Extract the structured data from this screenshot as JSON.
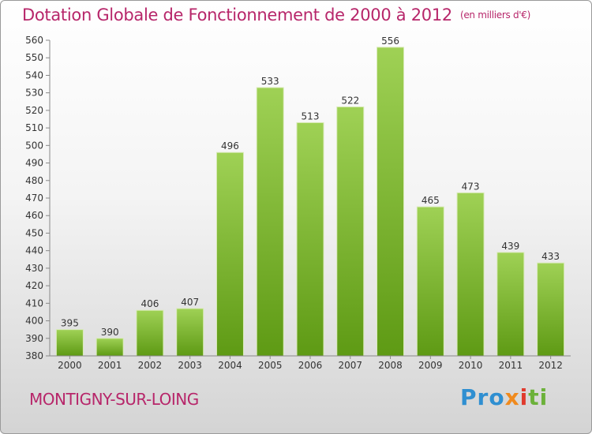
{
  "chart_data": {
    "type": "bar",
    "title": "Dotation Globale de Fonctionnement de 2000 à 2012",
    "unit_note": "(en milliers d'€)",
    "categories": [
      "2000",
      "2001",
      "2002",
      "2003",
      "2004",
      "2005",
      "2006",
      "2007",
      "2008",
      "2009",
      "2010",
      "2011",
      "2012"
    ],
    "values": [
      395,
      390,
      406,
      407,
      496,
      533,
      513,
      522,
      556,
      465,
      473,
      439,
      433
    ],
    "ylim": [
      380,
      560
    ],
    "ytick_step": 10,
    "grid": false,
    "legend": "none",
    "bar_color": "#7dba33"
  },
  "commune": "MONTIGNY-SUR-LOING",
  "logo": {
    "part1": "Pro",
    "part2": "x",
    "part3": "i",
    "part4": "ti"
  }
}
